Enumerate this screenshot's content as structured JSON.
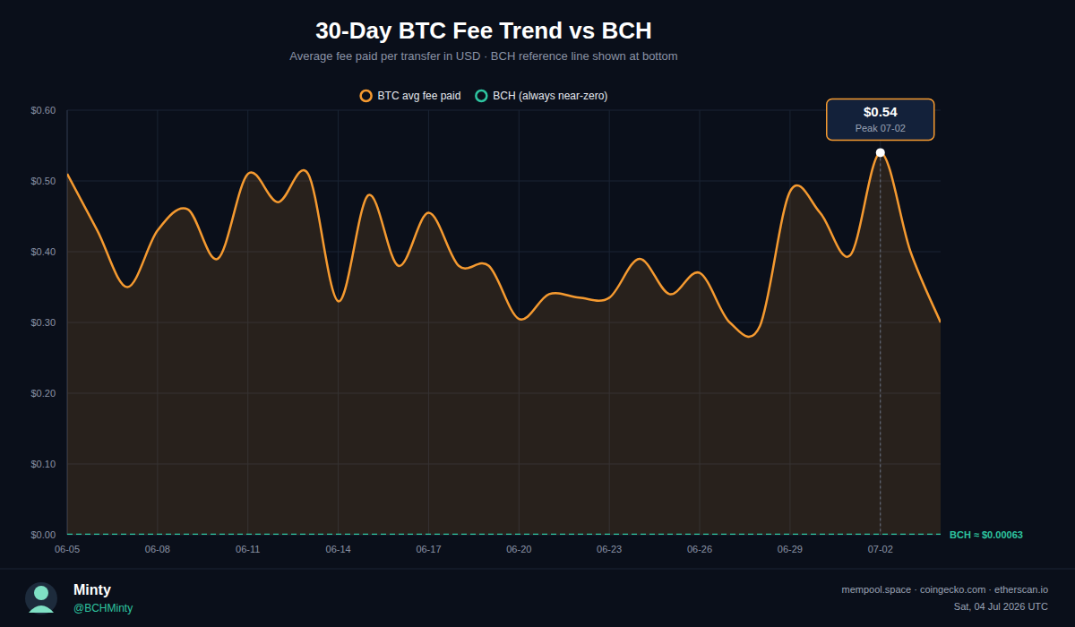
{
  "chart_data": {
    "type": "line",
    "title": "30-Day BTC Fee Trend vs BCH",
    "subtitle": "Average fee paid per transfer in USD · BCH reference line shown at bottom",
    "categories": [
      "06-05",
      null,
      null,
      "06-08",
      null,
      null,
      "06-11",
      null,
      null,
      "06-14",
      null,
      null,
      "06-17",
      null,
      null,
      "06-20",
      null,
      null,
      "06-23",
      null,
      null,
      "06-26",
      null,
      null,
      "06-29",
      null,
      null,
      "07-02",
      null,
      null
    ],
    "series": [
      {
        "name": "BTC avg fee paid",
        "color": "#f59a30",
        "line_style": "solid",
        "values": [
          0.51,
          0.43,
          0.35,
          0.43,
          0.46,
          0.39,
          0.51,
          0.47,
          0.51,
          0.33,
          0.48,
          0.38,
          0.455,
          0.38,
          0.38,
          0.305,
          0.34,
          0.335,
          0.335,
          0.39,
          0.34,
          0.37,
          0.3,
          0.295,
          0.485,
          0.455,
          0.395,
          0.54,
          0.4,
          0.3
        ]
      },
      {
        "name": "BCH (always near-zero)",
        "color": "#2ec4a0",
        "line_style": "dashed",
        "end_label": "BCH ≈ $0.00063",
        "values": [
          0.00063,
          0.00063,
          0.00063,
          0.00063,
          0.00063,
          0.00063,
          0.00063,
          0.00063,
          0.00063,
          0.00063,
          0.00063,
          0.00063,
          0.00063,
          0.00063,
          0.00063,
          0.00063,
          0.00063,
          0.00063,
          0.00063,
          0.00063,
          0.00063,
          0.00063,
          0.00063,
          0.00063,
          0.00063,
          0.00063,
          0.00063,
          0.00063,
          0.00063,
          0.00063
        ]
      }
    ],
    "ylim": [
      0,
      0.6
    ],
    "yticks": [
      {
        "value": 0,
        "label": "$0.00"
      },
      {
        "value": 0.1,
        "label": "$0.10"
      },
      {
        "value": 0.2,
        "label": "$0.20"
      },
      {
        "value": 0.3,
        "label": "$0.30"
      },
      {
        "value": 0.4,
        "label": "$0.40"
      },
      {
        "value": 0.5,
        "label": "$0.50"
      },
      {
        "value": 0.6,
        "label": "$0.60"
      }
    ],
    "grid": true,
    "legend": "top",
    "annotations": [
      {
        "label": "$0.54",
        "sublabel": "Peak  07-02",
        "x": "07-02"
      }
    ],
    "footer": {
      "name": "Minty",
      "handle": "@BCHMinty",
      "sources": "mempool.space · coingecko.com · etherscan.io",
      "date": "Sat, 04 Jul 2026 UTC"
    }
  }
}
